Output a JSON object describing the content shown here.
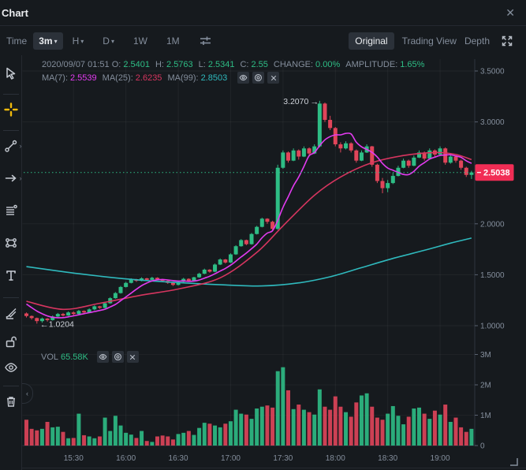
{
  "header": {
    "title": "Chart"
  },
  "icons": {
    "caret_down": "▾",
    "chevron_right": "›",
    "chevron_left": "‹",
    "close": "✕",
    "arrow_right": "→",
    "arrow_left": "←"
  },
  "toolbar": {
    "time_label": "Time",
    "interval_selected": "3m",
    "interval_h": "H",
    "interval_d": "D",
    "interval_1w": "1W",
    "interval_1m": "1M",
    "modes": {
      "original": "Original",
      "tradingview": "Trading View",
      "depth": "Depth"
    }
  },
  "ohlc": {
    "datetime": "2020/09/07 01:51",
    "o_label": "O:",
    "o": "2.5401",
    "h_label": "H:",
    "h": "2.5763",
    "l_label": "L:",
    "l": "2.5341",
    "c_label": "C:",
    "c": "2.55",
    "change_label": "CHANGE:",
    "change": "0.00%",
    "amplitude_label": "AMPLITUDE:",
    "amplitude": "1.65%"
  },
  "ma": {
    "ma7_label": "MA(7):",
    "ma7": "2.5539",
    "ma25_label": "MA(25):",
    "ma25": "2.6235",
    "ma99_label": "MA(99):",
    "ma99": "2.8503"
  },
  "volume_header": {
    "label": "VOL",
    "value": "65.58K"
  },
  "annotations": {
    "high": "3.2070",
    "low": "1.0204",
    "last_price": "2.5038"
  },
  "sidebar": {
    "tools": [
      {
        "name": "cursor"
      },
      {
        "name": "crosshair",
        "active": true
      },
      {
        "name": "trend-line",
        "has_submenu": true
      },
      {
        "name": "arrow",
        "has_submenu": true
      },
      {
        "name": "fib-lines"
      },
      {
        "name": "shape"
      },
      {
        "name": "text"
      },
      {
        "name": "brush"
      },
      {
        "name": "unlock"
      },
      {
        "name": "visibility"
      },
      {
        "name": "delete"
      }
    ]
  },
  "colors": {
    "background": "#161a1e",
    "border": "#252930",
    "box": "#2b3139",
    "text_primary": "#eaecef",
    "text_secondary": "#848e9c",
    "up": "#2ebd85",
    "down": "#e0455a",
    "badge": "#f12d55",
    "ma7": "#e33bf0",
    "ma25": "#d6355f",
    "ma99": "#2fb9bd",
    "accent_yellow": "#f0b90b"
  },
  "chart_data": {
    "type": "candlestick+volume",
    "interval": "3m",
    "date": "2020/09/07",
    "price_axis_range": [
      1.0,
      3.5
    ],
    "volume_axis_range_millions": [
      0,
      3
    ],
    "price_ticks": [
      [
        "3.5000",
        3.5
      ],
      [
        "3.0000",
        3.0
      ],
      [
        "2.0000",
        2.0
      ],
      [
        "1.5000",
        1.5
      ],
      [
        "1.0000",
        1.0
      ]
    ],
    "volume_ticks": [
      [
        "3M",
        3
      ],
      [
        "2M",
        2
      ],
      [
        "1M",
        1
      ],
      [
        "0",
        0
      ]
    ],
    "time_ticks": [
      [
        9,
        "15:30"
      ],
      [
        19,
        "16:00"
      ],
      [
        29,
        "16:30"
      ],
      [
        39,
        "17:00"
      ],
      [
        49,
        "17:30"
      ],
      [
        59,
        "18:00"
      ],
      [
        69,
        "18:30"
      ],
      [
        79,
        "19:00"
      ]
    ],
    "last_price": 2.5038,
    "high_annotation": {
      "index": 56,
      "price": 3.207
    },
    "low_annotation": {
      "index": 2,
      "price": 1.0204
    },
    "candles_ohlcv": [
      [
        1.12,
        1.13,
        1.08,
        1.095,
        0.85
      ],
      [
        1.095,
        1.1,
        1.06,
        1.075,
        0.55
      ],
      [
        1.075,
        1.08,
        1.0204,
        1.045,
        0.5
      ],
      [
        1.045,
        1.08,
        1.03,
        1.07,
        0.55
      ],
      [
        1.07,
        1.075,
        1.04,
        1.055,
        0.78
      ],
      [
        1.055,
        1.1,
        1.05,
        1.09,
        0.6
      ],
      [
        1.09,
        1.125,
        1.08,
        1.115,
        0.62
      ],
      [
        1.115,
        1.125,
        1.09,
        1.1,
        0.45
      ],
      [
        1.1,
        1.14,
        1.095,
        1.13,
        0.24
      ],
      [
        1.13,
        1.14,
        1.1,
        1.115,
        0.25
      ],
      [
        1.115,
        1.155,
        1.11,
        1.145,
        1.05
      ],
      [
        1.145,
        1.15,
        1.12,
        1.13,
        0.34
      ],
      [
        1.13,
        1.17,
        1.125,
        1.16,
        0.3
      ],
      [
        1.16,
        1.2,
        1.15,
        1.19,
        0.24
      ],
      [
        1.19,
        1.195,
        1.165,
        1.175,
        0.3
      ],
      [
        1.175,
        1.23,
        1.17,
        1.22,
        0.92
      ],
      [
        1.22,
        1.28,
        1.215,
        1.27,
        0.48
      ],
      [
        1.27,
        1.33,
        1.265,
        1.32,
        0.98
      ],
      [
        1.32,
        1.39,
        1.315,
        1.38,
        0.66
      ],
      [
        1.38,
        1.43,
        1.375,
        1.42,
        0.42
      ],
      [
        1.42,
        1.465,
        1.415,
        1.455,
        0.36
      ],
      [
        1.455,
        1.46,
        1.43,
        1.44,
        0.25
      ],
      [
        1.44,
        1.475,
        1.435,
        1.465,
        0.48
      ],
      [
        1.465,
        1.47,
        1.44,
        1.45,
        0.15
      ],
      [
        1.45,
        1.48,
        1.445,
        1.47,
        0.12
      ],
      [
        1.47,
        1.475,
        1.445,
        1.455,
        0.3
      ],
      [
        1.455,
        1.46,
        1.43,
        1.44,
        0.33
      ],
      [
        1.44,
        1.45,
        1.41,
        1.42,
        0.3
      ],
      [
        1.42,
        1.43,
        1.39,
        1.4,
        0.2
      ],
      [
        1.4,
        1.44,
        1.395,
        1.43,
        0.38
      ],
      [
        1.43,
        1.47,
        1.425,
        1.46,
        0.42
      ],
      [
        1.46,
        1.465,
        1.43,
        1.44,
        0.48
      ],
      [
        1.44,
        1.48,
        1.435,
        1.475,
        0.35
      ],
      [
        1.475,
        1.52,
        1.47,
        1.51,
        0.58
      ],
      [
        1.51,
        1.56,
        1.505,
        1.55,
        0.75
      ],
      [
        1.55,
        1.555,
        1.52,
        1.53,
        0.72
      ],
      [
        1.53,
        1.61,
        1.525,
        1.6,
        0.66
      ],
      [
        1.6,
        1.66,
        1.595,
        1.65,
        0.6
      ],
      [
        1.65,
        1.655,
        1.61,
        1.62,
        0.72
      ],
      [
        1.62,
        1.71,
        1.615,
        1.7,
        0.8
      ],
      [
        1.7,
        1.79,
        1.695,
        1.78,
        1.18
      ],
      [
        1.78,
        1.85,
        1.775,
        1.84,
        1.05
      ],
      [
        1.84,
        1.845,
        1.79,
        1.8,
        1.02
      ],
      [
        1.8,
        1.91,
        1.795,
        1.9,
        0.88
      ],
      [
        1.9,
        1.98,
        1.895,
        1.97,
        1.22
      ],
      [
        1.97,
        2.06,
        1.965,
        2.05,
        1.28
      ],
      [
        2.05,
        2.055,
        2.0,
        2.02,
        1.32
      ],
      [
        2.02,
        2.03,
        1.93,
        1.95,
        1.25
      ],
      [
        1.95,
        2.58,
        1.94,
        2.55,
        2.45
      ],
      [
        2.55,
        2.72,
        2.54,
        2.7,
        2.58
      ],
      [
        2.7,
        2.71,
        2.6,
        2.62,
        1.82
      ],
      [
        2.62,
        2.74,
        2.615,
        2.72,
        1.2
      ],
      [
        2.72,
        2.73,
        2.63,
        2.66,
        1.35
      ],
      [
        2.66,
        2.76,
        2.655,
        2.74,
        1.18
      ],
      [
        2.74,
        2.75,
        2.66,
        2.69,
        1.1
      ],
      [
        2.69,
        2.78,
        2.685,
        2.76,
        1.02
      ],
      [
        2.76,
        3.207,
        2.75,
        3.18,
        1.85
      ],
      [
        3.18,
        3.19,
        3.0,
        3.02,
        1.28
      ],
      [
        3.02,
        3.06,
        2.92,
        2.94,
        1.18
      ],
      [
        2.94,
        2.95,
        2.76,
        2.78,
        1.62
      ],
      [
        2.78,
        2.8,
        2.7,
        2.74,
        1.28
      ],
      [
        2.74,
        2.81,
        2.73,
        2.79,
        1.1
      ],
      [
        2.79,
        2.8,
        2.7,
        2.72,
        0.95
      ],
      [
        2.72,
        2.73,
        2.6,
        2.62,
        1.42
      ],
      [
        2.62,
        2.72,
        2.615,
        2.7,
        1.65
      ],
      [
        2.7,
        2.78,
        2.695,
        2.76,
        1.72
      ],
      [
        2.76,
        2.765,
        2.56,
        2.58,
        1.28
      ],
      [
        2.58,
        2.59,
        2.4,
        2.42,
        0.92
      ],
      [
        2.42,
        2.45,
        2.3,
        2.35,
        0.85
      ],
      [
        2.35,
        2.43,
        2.31,
        2.4,
        1.05
      ],
      [
        2.4,
        2.5,
        2.39,
        2.47,
        1.3
      ],
      [
        2.47,
        2.57,
        2.465,
        2.55,
        0.98
      ],
      [
        2.55,
        2.64,
        2.545,
        2.62,
        0.7
      ],
      [
        2.62,
        2.63,
        2.55,
        2.57,
        0.95
      ],
      [
        2.57,
        2.67,
        2.565,
        2.65,
        1.22
      ],
      [
        2.65,
        2.72,
        2.645,
        2.7,
        1.25
      ],
      [
        2.7,
        2.71,
        2.62,
        2.64,
        1.05
      ],
      [
        2.64,
        2.74,
        2.635,
        2.72,
        0.88
      ],
      [
        2.72,
        2.73,
        2.66,
        2.68,
        1.15
      ],
      [
        2.68,
        2.76,
        2.675,
        2.74,
        1.02
      ],
      [
        2.74,
        2.75,
        2.58,
        2.6,
        1.35
      ],
      [
        2.6,
        2.68,
        2.59,
        2.66,
        0.78
      ],
      [
        2.66,
        2.67,
        2.6,
        2.62,
        0.92
      ],
      [
        2.62,
        2.63,
        2.53,
        2.55,
        0.6
      ],
      [
        2.55,
        2.56,
        2.46,
        2.48,
        0.45
      ],
      [
        2.48,
        2.52,
        2.44,
        2.5038,
        0.55
      ]
    ],
    "ma7_prehistory_closes": [
      1.32,
      1.28,
      1.25,
      1.21,
      1.18,
      1.15
    ],
    "ma25_points": [
      [
        0,
        1.24
      ],
      [
        7,
        1.16
      ],
      [
        14,
        1.22
      ],
      [
        22,
        1.3
      ],
      [
        29,
        1.36
      ],
      [
        37,
        1.47
      ],
      [
        44,
        1.72
      ],
      [
        49,
        1.98
      ],
      [
        55,
        2.28
      ],
      [
        60,
        2.46
      ],
      [
        66,
        2.6
      ],
      [
        72,
        2.67
      ],
      [
        78,
        2.7
      ],
      [
        82,
        2.68
      ],
      [
        85,
        2.63
      ]
    ],
    "ma99_points": [
      [
        0,
        1.58
      ],
      [
        10,
        1.51
      ],
      [
        20,
        1.455
      ],
      [
        30,
        1.42
      ],
      [
        38,
        1.4
      ],
      [
        45,
        1.39
      ],
      [
        52,
        1.42
      ],
      [
        58,
        1.48
      ],
      [
        64,
        1.57
      ],
      [
        70,
        1.66
      ],
      [
        76,
        1.74
      ],
      [
        81,
        1.81
      ],
      [
        85,
        1.86
      ]
    ]
  }
}
